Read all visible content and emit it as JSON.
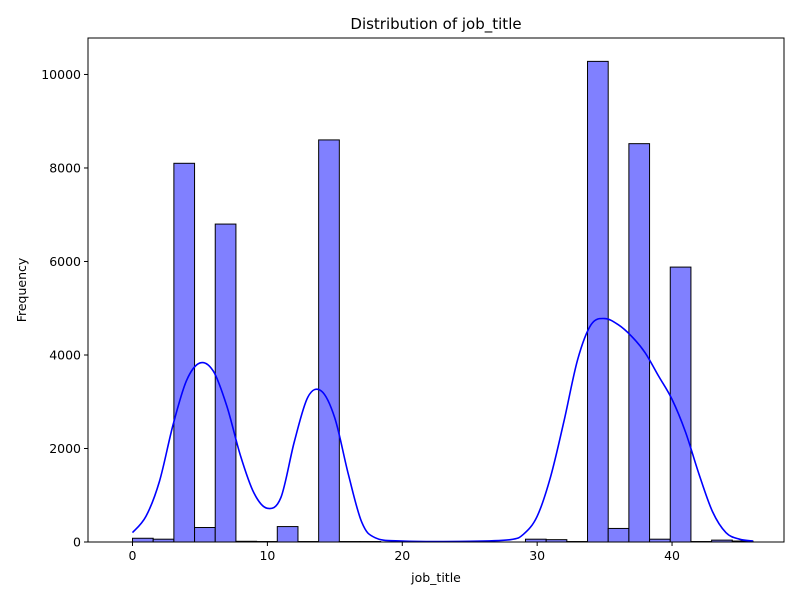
{
  "chart_data": {
    "type": "bar",
    "title": "Distribution of job_title",
    "xlabel": "job_title",
    "ylabel": "Frequency",
    "xlim": [
      -3.3,
      48.3
    ],
    "ylim": [
      0,
      10780
    ],
    "xticks": [
      0,
      10,
      20,
      30,
      40
    ],
    "yticks": [
      0,
      2000,
      4000,
      6000,
      8000,
      10000
    ],
    "grid": false,
    "bar_color": "#8080ff",
    "bar_edge_color": "#000000",
    "kde_color": "#0000ff",
    "bin_edges": [
      0,
      1.533,
      3.067,
      4.6,
      6.133,
      7.667,
      9.2,
      10.733,
      12.267,
      13.8,
      15.333,
      16.867,
      18.4,
      19.933,
      21.467,
      23.0,
      24.533,
      26.067,
      27.6,
      29.133,
      30.667,
      32.2,
      33.733,
      35.267,
      36.8,
      38.333,
      39.867,
      41.4,
      42.933,
      44.467,
      46.0
    ],
    "values": [
      80,
      60,
      8100,
      310,
      6800,
      15,
      10,
      330,
      10,
      8600,
      10,
      10,
      0,
      0,
      0,
      0,
      0,
      0,
      0,
      60,
      50,
      10,
      10280,
      290,
      8520,
      60,
      5880,
      10,
      40,
      20
    ],
    "kde": {
      "x": [
        0,
        1,
        2,
        3,
        4,
        5,
        6,
        7,
        8,
        9,
        10,
        11,
        12,
        13,
        14,
        15,
        16,
        17,
        18,
        20,
        25,
        28,
        29,
        30,
        31,
        32,
        33,
        34,
        35,
        36,
        37,
        38,
        39,
        40,
        41,
        42,
        43,
        44,
        45,
        46
      ],
      "y": [
        200,
        550,
        1300,
        2500,
        3450,
        3830,
        3650,
        2900,
        1850,
        1050,
        720,
        950,
        2150,
        3100,
        3230,
        2650,
        1450,
        420,
        90,
        20,
        15,
        50,
        170,
        550,
        1400,
        2600,
        3900,
        4650,
        4780,
        4650,
        4400,
        4050,
        3550,
        3050,
        2350,
        1450,
        650,
        200,
        60,
        20
      ]
    }
  }
}
